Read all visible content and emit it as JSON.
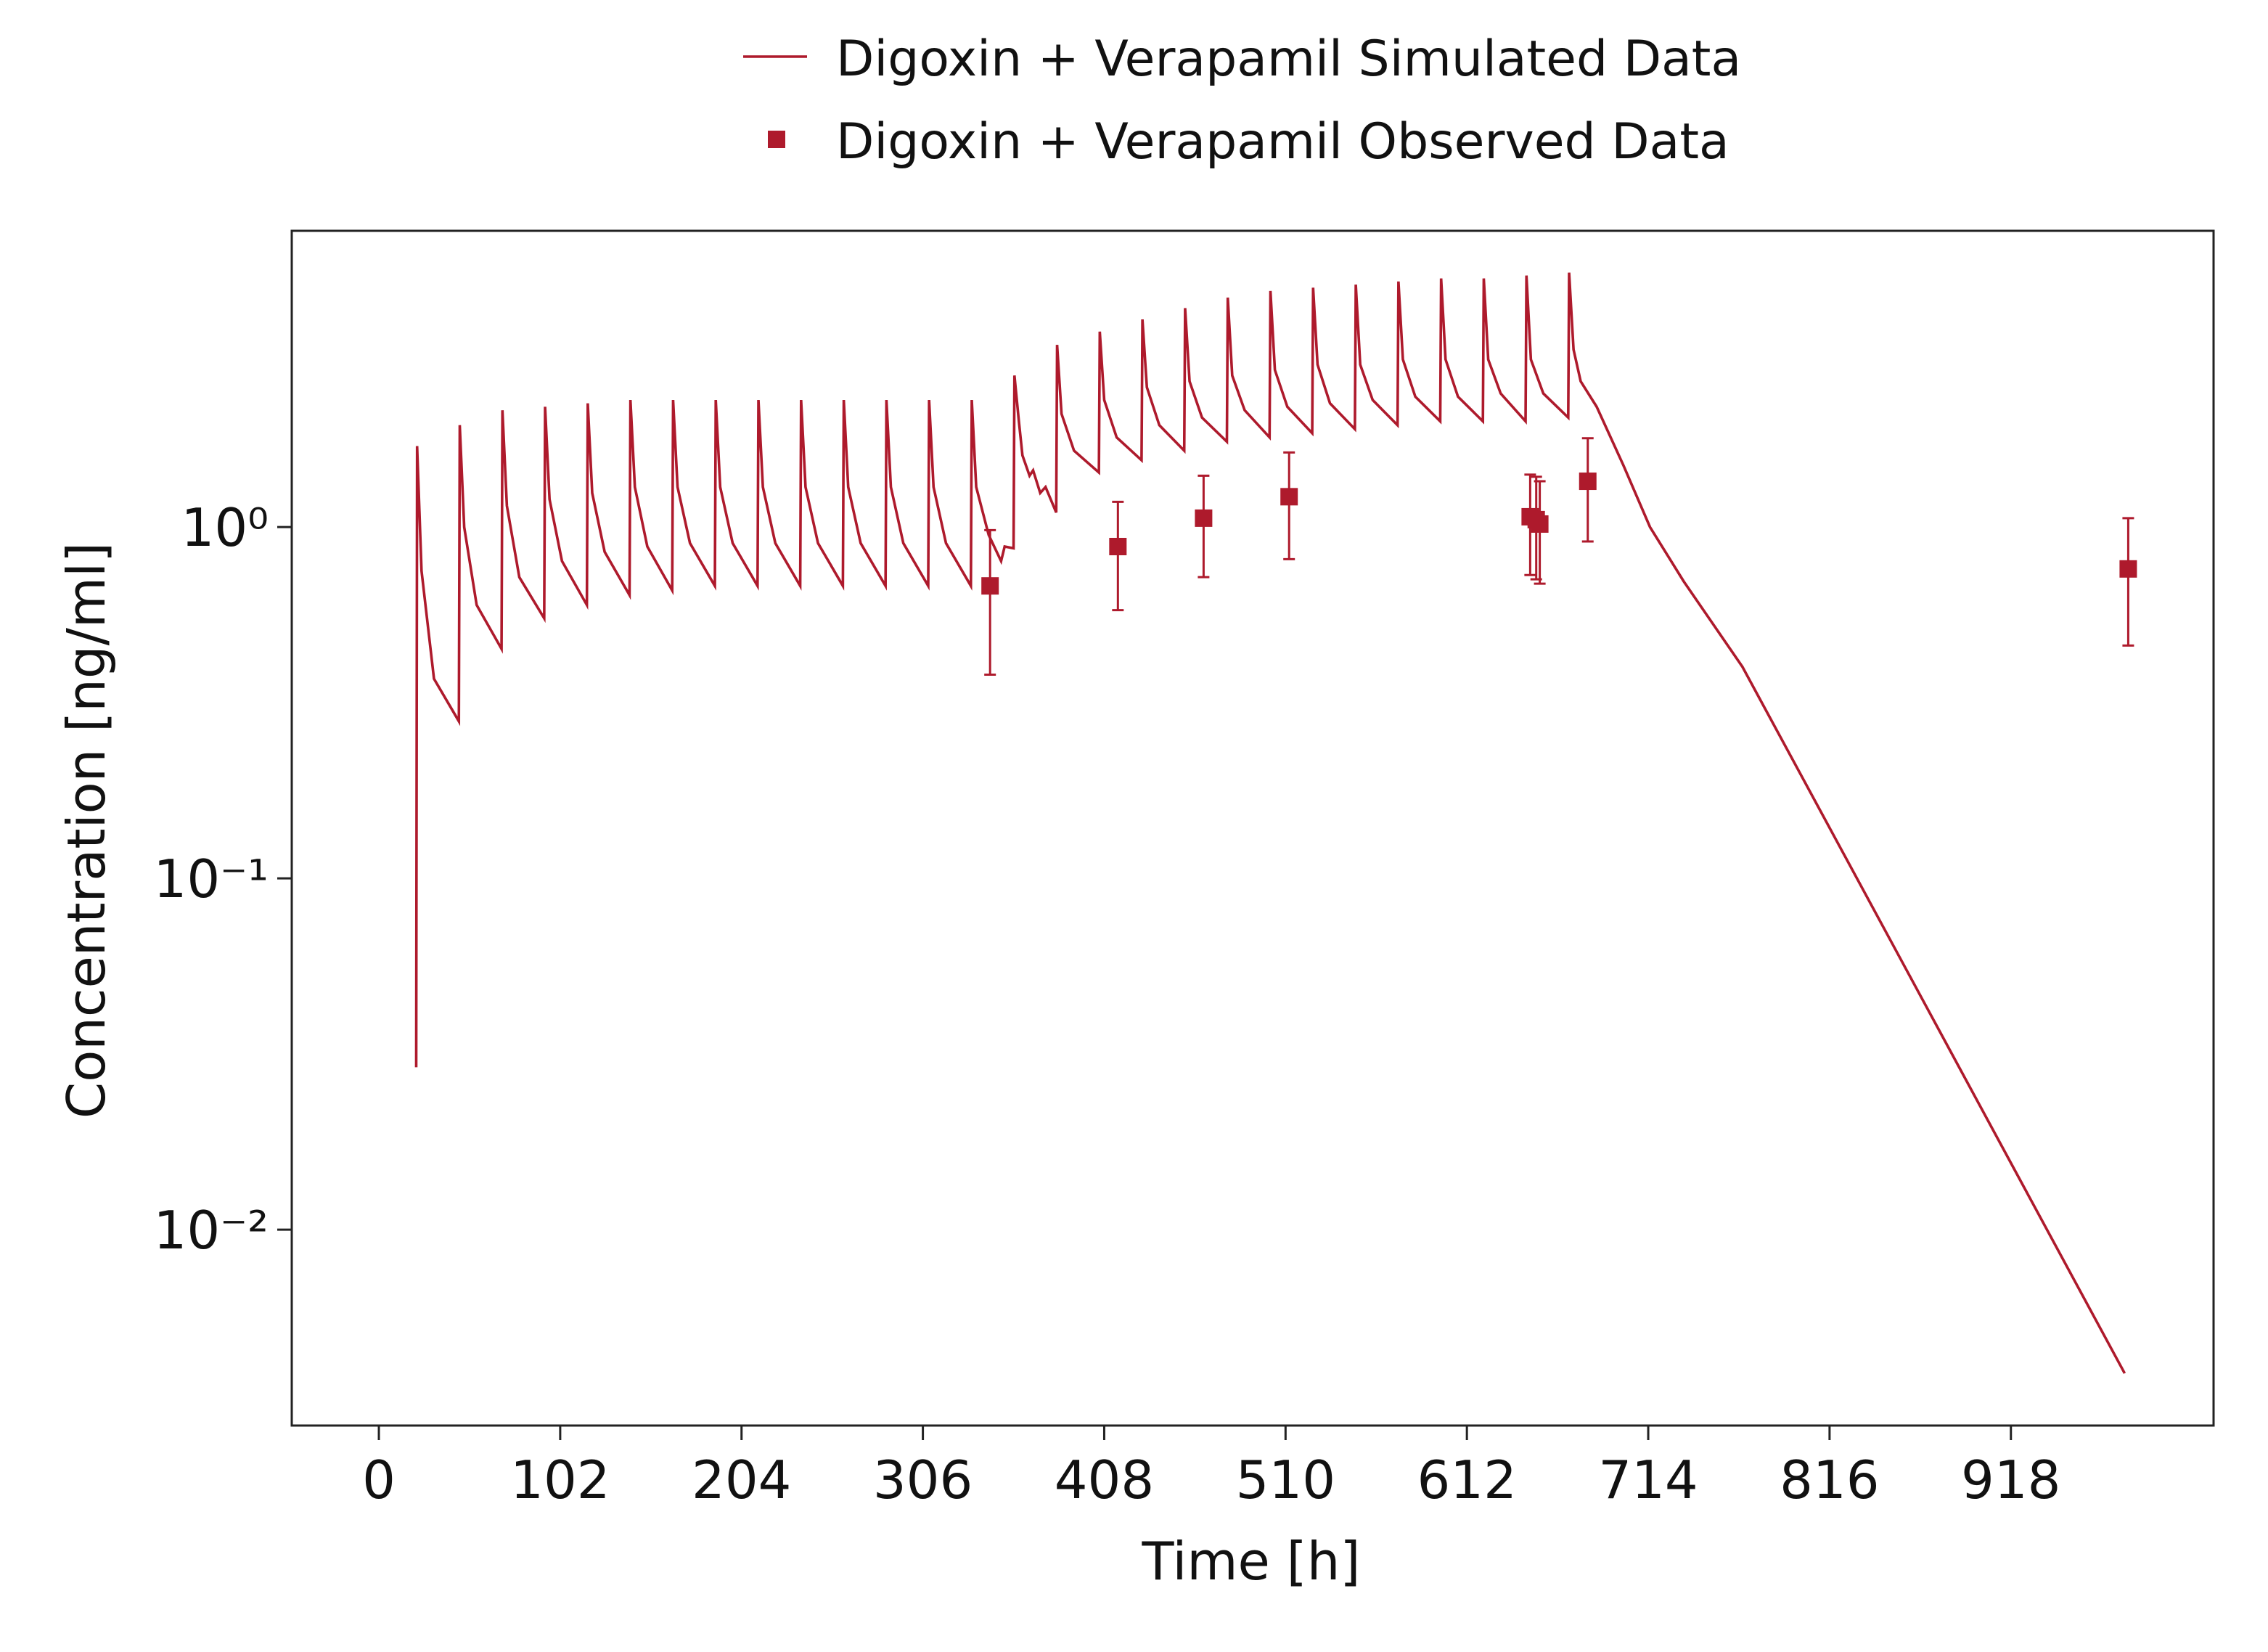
{
  "chart_data": {
    "type": "line",
    "xlabel": "Time [h]",
    "ylabel": "Concentration [ng/ml]",
    "xlim": [
      -49,
      1032
    ],
    "ylim": [
      0.00277,
      6.97
    ],
    "yscale": "log",
    "xticks": [
      0,
      102,
      204,
      306,
      408,
      510,
      612,
      714,
      816,
      918
    ],
    "yticks": [
      {
        "value": 0.01,
        "label": "10⁻²"
      },
      {
        "value": 0.1,
        "label": "10⁻¹"
      },
      {
        "value": 1,
        "label": "10⁰"
      }
    ],
    "legend": "top",
    "series": [
      {
        "name": "Digoxin + Verapamil Simulated Data",
        "color": "#ae1a2c",
        "style": "line",
        "x": [
          21,
          21.5,
          24,
          31,
          45,
          45.5,
          48,
          55,
          69,
          69.5,
          72,
          79,
          93,
          93.5,
          96,
          103,
          117,
          117.5,
          120,
          127,
          141,
          141.5,
          144,
          151,
          165,
          165.5,
          168,
          175,
          189,
          189.5,
          192,
          199,
          213,
          213.5,
          216,
          223,
          237,
          237.5,
          240,
          247,
          261,
          261.5,
          264,
          271,
          285,
          285.5,
          288,
          295,
          309,
          309.5,
          312,
          319,
          333,
          333.5,
          336,
          343,
          350,
          352,
          357,
          357.5,
          360,
          362,
          366,
          368,
          372,
          375,
          381,
          381.5,
          384,
          391,
          405,
          405.5,
          408,
          415,
          429,
          429.5,
          432,
          439,
          453,
          453.5,
          456,
          463,
          477,
          477.5,
          480,
          487,
          501,
          501.5,
          504,
          511,
          525,
          525.5,
          528,
          535,
          549,
          549.5,
          552,
          559,
          573,
          573.5,
          576,
          583,
          597,
          597.5,
          600,
          607,
          621,
          621.5,
          624,
          631,
          645,
          645.5,
          648,
          655,
          669,
          669.5,
          672,
          676,
          685,
          700,
          715,
          734,
          767,
          850,
          982
        ],
        "values": [
          0.029,
          1.7,
          0.75,
          0.37,
          0.28,
          1.95,
          1.0,
          0.6,
          0.45,
          2.15,
          1.15,
          0.72,
          0.55,
          2.2,
          1.2,
          0.8,
          0.6,
          2.25,
          1.25,
          0.85,
          0.64,
          2.3,
          1.3,
          0.88,
          0.66,
          2.3,
          1.3,
          0.9,
          0.68,
          2.3,
          1.3,
          0.9,
          0.68,
          2.3,
          1.3,
          0.9,
          0.68,
          2.3,
          1.3,
          0.9,
          0.68,
          2.3,
          1.3,
          0.9,
          0.68,
          2.3,
          1.3,
          0.9,
          0.68,
          2.3,
          1.3,
          0.9,
          0.68,
          2.3,
          1.3,
          0.95,
          0.8,
          0.88,
          0.87,
          2.7,
          2.0,
          1.6,
          1.4,
          1.45,
          1.25,
          1.3,
          1.1,
          3.3,
          2.1,
          1.65,
          1.43,
          3.6,
          2.3,
          1.8,
          1.55,
          3.9,
          2.5,
          1.95,
          1.65,
          4.2,
          2.6,
          2.05,
          1.75,
          4.5,
          2.7,
          2.15,
          1.8,
          4.7,
          2.8,
          2.2,
          1.85,
          4.8,
          2.9,
          2.25,
          1.9,
          4.9,
          2.9,
          2.3,
          1.95,
          5.0,
          3.0,
          2.35,
          2.0,
          5.1,
          3.0,
          2.35,
          2.0,
          5.1,
          3.0,
          2.4,
          2.0,
          5.2,
          3.0,
          2.4,
          2.05,
          5.3,
          3.2,
          2.6,
          2.2,
          1.5,
          1.0,
          0.7,
          0.4,
          0.067,
          0.0039
        ]
      },
      {
        "name": "Digoxin + Verapamil Observed Data",
        "color": "#ae1a2c",
        "style": "square",
        "x": [
          343.8,
          415.7,
          463.9,
          512,
          647.6,
          651,
          653,
          680,
          984
        ],
        "values": [
          0.68,
          0.88,
          1.06,
          1.22,
          1.07,
          1.05,
          1.02,
          1.35,
          0.76
        ],
        "errors": [
          0.3,
          0.3,
          0.34,
          0.41,
          0.34,
          0.34,
          0.33,
          0.44,
          0.3
        ]
      }
    ]
  }
}
